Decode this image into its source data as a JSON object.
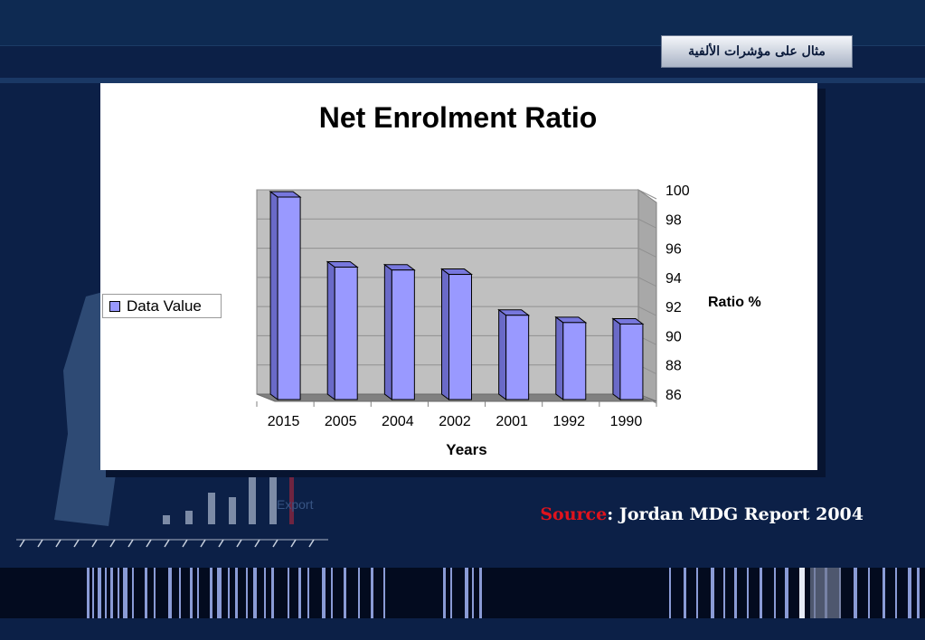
{
  "slide": {
    "heading": "مثال على مؤشرات الألفية",
    "source_label": "Source",
    "source_text": ": Jordan MDG Report 2004",
    "background_words": [
      "Export"
    ]
  },
  "chart_data": {
    "type": "bar",
    "title": "Net Enrolment Ratio",
    "xlabel": "Years",
    "ylabel": "Ratio %",
    "categories": [
      "2015",
      "2005",
      "2004",
      "2002",
      "2001",
      "1992",
      "1990"
    ],
    "series": [
      {
        "name": "Data Value",
        "values": [
          100,
          95.2,
          95.0,
          94.7,
          91.9,
          91.4,
          91.3
        ]
      }
    ],
    "ylim": [
      86,
      100
    ],
    "yticks": [
      86,
      88,
      90,
      92,
      94,
      96,
      98,
      100
    ],
    "grid": true,
    "legend": "left",
    "colors": {
      "bar": "#9999ff",
      "wall": "#c0c0c0",
      "floor": "#808080"
    }
  }
}
